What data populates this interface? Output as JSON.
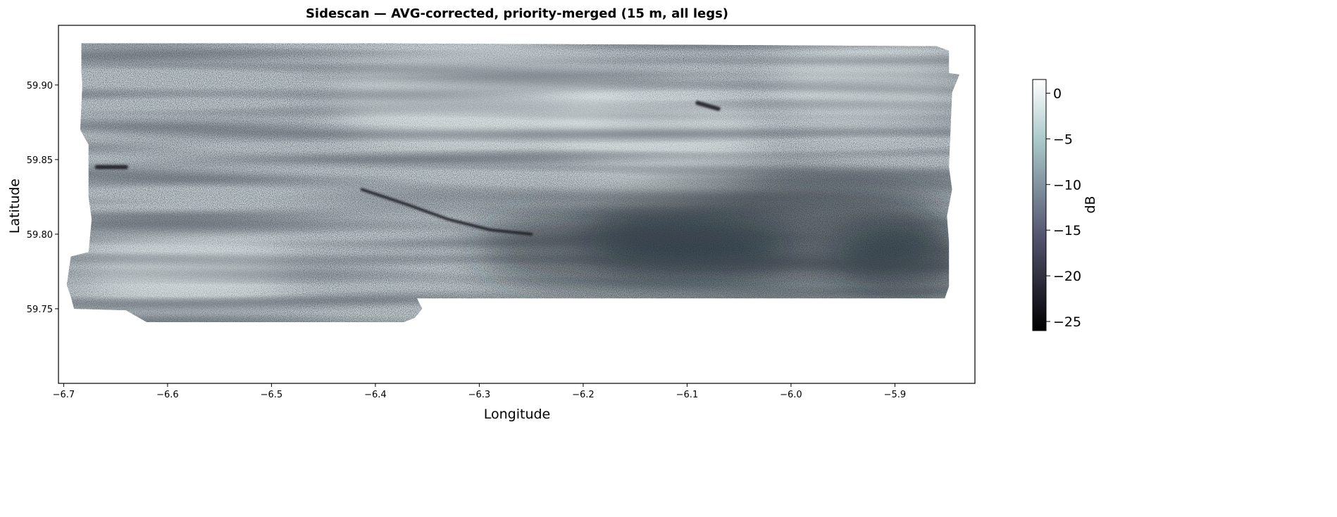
{
  "chart_data": {
    "type": "heatmap",
    "title": "Sidescan — AVG-corrected, priority-merged (15 m, all legs)",
    "xlabel": "Longitude",
    "ylabel": "Latitude",
    "xlim": [
      -6.705,
      -5.823
    ],
    "ylim": [
      59.7,
      59.94
    ],
    "x_ticks": [
      {
        "value": -6.7,
        "label": "−6.7"
      },
      {
        "value": -6.6,
        "label": "−6.6"
      },
      {
        "value": -6.5,
        "label": "−6.5"
      },
      {
        "value": -6.4,
        "label": "−6.4"
      },
      {
        "value": -6.3,
        "label": "−6.3"
      },
      {
        "value": -6.2,
        "label": "−6.2"
      },
      {
        "value": -6.1,
        "label": "−6.1"
      },
      {
        "value": -6.0,
        "label": "−6.0"
      },
      {
        "value": -5.9,
        "label": "−5.9"
      }
    ],
    "y_ticks": [
      {
        "value": 59.75,
        "label": "59.75"
      },
      {
        "value": 59.8,
        "label": "59.80"
      },
      {
        "value": 59.85,
        "label": "59.85"
      },
      {
        "value": 59.9,
        "label": "59.90"
      }
    ],
    "grid": false,
    "colorbar": {
      "label": "dB",
      "range": [
        -26,
        1.5
      ],
      "colormap": "bone",
      "colors": [
        "#000000",
        "#54546f",
        "#a7c7c7",
        "#ffffff"
      ],
      "ticks": [
        {
          "value": 0,
          "label": "0"
        },
        {
          "value": -5,
          "label": "−5"
        },
        {
          "value": -10,
          "label": "−10"
        },
        {
          "value": -15,
          "label": "−15"
        },
        {
          "value": -20,
          "label": "−20"
        },
        {
          "value": -25,
          "label": "−25"
        }
      ]
    },
    "coverage_polygon": [
      [
        -6.683,
        59.928
      ],
      [
        -6.42,
        59.928
      ],
      [
        -6.1,
        59.927
      ],
      [
        -5.86,
        59.926
      ],
      [
        -5.848,
        59.923
      ],
      [
        -5.848,
        59.908
      ],
      [
        -5.838,
        59.907
      ],
      [
        -5.845,
        59.895
      ],
      [
        -5.848,
        59.845
      ],
      [
        -5.845,
        59.83
      ],
      [
        -5.85,
        59.812
      ],
      [
        -5.848,
        59.795
      ],
      [
        -5.848,
        59.765
      ],
      [
        -5.852,
        59.757
      ],
      [
        -6.1,
        59.757
      ],
      [
        -6.36,
        59.757
      ],
      [
        -6.355,
        59.75
      ],
      [
        -6.362,
        59.744
      ],
      [
        -6.373,
        59.741
      ],
      [
        -6.4,
        59.741
      ],
      [
        -6.62,
        59.741
      ],
      [
        -6.63,
        59.745
      ],
      [
        -6.64,
        59.749
      ],
      [
        -6.69,
        59.75
      ],
      [
        -6.693,
        59.758
      ],
      [
        -6.697,
        59.766
      ],
      [
        -6.693,
        59.785
      ],
      [
        -6.676,
        59.788
      ],
      [
        -6.673,
        59.81
      ],
      [
        -6.676,
        59.825
      ],
      [
        -6.676,
        59.86
      ],
      [
        -6.684,
        59.87
      ],
      [
        -6.682,
        59.9
      ],
      [
        -6.683,
        59.91
      ]
    ],
    "features": [
      {
        "kind": "dark-lineament",
        "points": [
          [
            -6.413,
            59.83
          ],
          [
            -6.37,
            59.82
          ],
          [
            -6.33,
            59.81
          ],
          [
            -6.29,
            59.803
          ],
          [
            -6.25,
            59.8
          ]
        ]
      },
      {
        "kind": "dark-patch",
        "points": [
          [
            -6.668,
            59.845
          ],
          [
            -6.64,
            59.845
          ]
        ]
      },
      {
        "kind": "dark-patch",
        "points": [
          [
            -6.09,
            59.888
          ],
          [
            -6.07,
            59.884
          ]
        ]
      },
      {
        "kind": "dark-region",
        "center": [
          -6.02,
          59.8
        ],
        "rx": 0.18,
        "ry": 0.04
      },
      {
        "kind": "dark-region",
        "center": [
          -6.15,
          59.79
        ],
        "rx": 0.15,
        "ry": 0.03
      },
      {
        "kind": "dark-region",
        "center": [
          -5.89,
          59.78
        ],
        "rx": 0.07,
        "ry": 0.03
      },
      {
        "kind": "bright-region",
        "center": [
          -5.93,
          59.9
        ],
        "rx": 0.09,
        "ry": 0.03
      },
      {
        "kind": "bright-region",
        "center": [
          -6.3,
          59.89
        ],
        "rx": 0.14,
        "ry": 0.035
      },
      {
        "kind": "bright-region",
        "center": [
          -6.13,
          59.87
        ],
        "rx": 0.1,
        "ry": 0.03
      },
      {
        "kind": "bright-region",
        "center": [
          -6.58,
          59.775
        ],
        "rx": 0.1,
        "ry": 0.025
      }
    ]
  }
}
